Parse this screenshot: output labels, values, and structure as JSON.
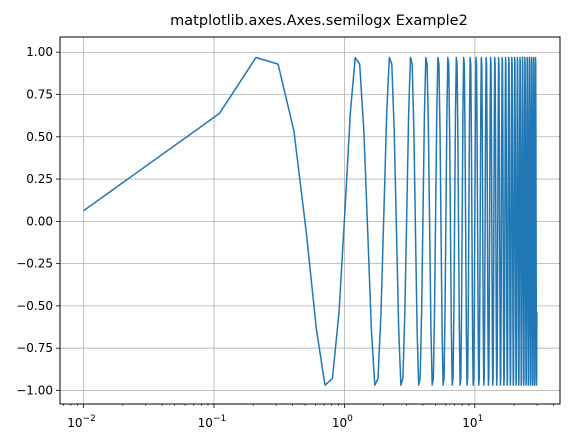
{
  "chart_data": {
    "type": "line",
    "title": "matplotlib.axes.Axes.semilogx Example2",
    "xlabel": "",
    "ylabel": "",
    "xscale": "log",
    "xlim": [
      0.0066,
      45
    ],
    "ylim": [
      -1.08,
      1.09
    ],
    "grid": true,
    "line_color": "#1f77b4",
    "x_ticks": [
      {
        "value": 0.01,
        "base": "10",
        "exp": "−2"
      },
      {
        "value": 0.1,
        "base": "10",
        "exp": "−1"
      },
      {
        "value": 1,
        "base": "10",
        "exp": "0"
      },
      {
        "value": 10,
        "base": "10",
        "exp": "1"
      }
    ],
    "y_ticks": [
      {
        "value": 1.0,
        "label": "1.00"
      },
      {
        "value": 0.75,
        "label": "0.75"
      },
      {
        "value": 0.5,
        "label": "0.50"
      },
      {
        "value": 0.25,
        "label": "0.25"
      },
      {
        "value": 0.0,
        "label": "0.00"
      },
      {
        "value": -0.25,
        "label": "−0.25"
      },
      {
        "value": -0.5,
        "label": "−0.50"
      },
      {
        "value": -0.75,
        "label": "−0.75"
      },
      {
        "value": -1.0,
        "label": "−1.00"
      }
    ],
    "series": [
      {
        "function": "sin(2*pi*x)",
        "x_start": 0.01,
        "x_stop": 30,
        "x_step": 0.1
      }
    ]
  }
}
